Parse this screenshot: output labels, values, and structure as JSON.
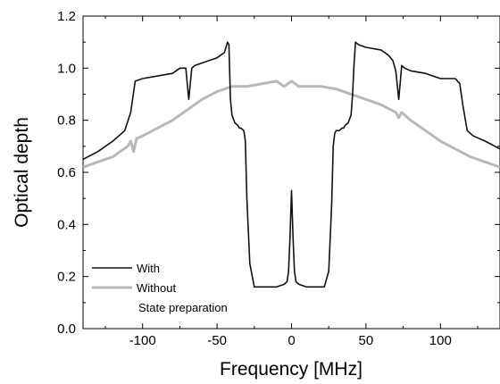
{
  "chart_data": {
    "type": "line",
    "title": "",
    "xlabel": "Frequency [MHz]",
    "ylabel": "Optical depth",
    "xlim": [
      -140,
      140
    ],
    "ylim": [
      0.0,
      1.2
    ],
    "x_ticks": [
      -100,
      -50,
      0,
      50,
      100
    ],
    "x_tick_labels": [
      "-100",
      "-50",
      "0",
      "50",
      "100"
    ],
    "y_ticks": [
      0.0,
      0.2,
      0.4,
      0.6,
      0.8,
      1.0,
      1.2
    ],
    "y_tick_labels": [
      "0.0",
      "0.2",
      "0.4",
      "0.6",
      "0.8",
      "1.0",
      "1.2"
    ],
    "grid": false,
    "legend": {
      "position": "bottom-left",
      "entries": [
        "With",
        "Without"
      ],
      "note": "State preparation"
    },
    "series": [
      {
        "name": "With",
        "color": "#111111",
        "x": [
          -140,
          -130,
          -120,
          -112,
          -108,
          -105,
          -100,
          -90,
          -80,
          -75,
          -71,
          -69,
          -67,
          -65,
          -60,
          -50,
          -45,
          -43,
          -42,
          -41,
          -40,
          -38,
          -36,
          -35,
          -34,
          -32,
          -31,
          -30,
          -28,
          -25,
          -15,
          -10,
          -5,
          -3,
          -2,
          -1,
          0,
          1,
          2,
          3,
          5,
          10,
          15,
          22,
          25,
          27,
          28,
          29,
          30,
          32,
          34,
          35,
          36,
          38,
          40,
          41,
          42,
          43,
          45,
          50,
          60,
          65,
          68,
          70,
          72,
          74,
          76,
          80,
          90,
          100,
          110,
          113,
          115,
          118,
          122,
          130,
          140
        ],
        "y": [
          0.65,
          0.68,
          0.72,
          0.76,
          0.83,
          0.95,
          0.96,
          0.97,
          0.98,
          1.0,
          1.0,
          0.88,
          1.0,
          1.01,
          1.02,
          1.04,
          1.06,
          1.1,
          1.09,
          0.88,
          0.82,
          0.79,
          0.78,
          0.77,
          0.77,
          0.76,
          0.72,
          0.5,
          0.25,
          0.16,
          0.16,
          0.16,
          0.17,
          0.18,
          0.22,
          0.35,
          0.53,
          0.35,
          0.22,
          0.18,
          0.17,
          0.16,
          0.16,
          0.16,
          0.22,
          0.48,
          0.7,
          0.75,
          0.76,
          0.76,
          0.77,
          0.77,
          0.78,
          0.79,
          0.82,
          0.9,
          1.02,
          1.1,
          1.09,
          1.08,
          1.07,
          1.05,
          1.03,
          0.99,
          0.88,
          1.01,
          1.0,
          0.99,
          0.98,
          0.96,
          0.96,
          0.94,
          0.86,
          0.76,
          0.74,
          0.72,
          0.69
        ]
      },
      {
        "name": "Without",
        "color": "#b8b8b8",
        "x": [
          -140,
          -130,
          -120,
          -110,
          -108,
          -106,
          -104,
          -100,
          -90,
          -80,
          -70,
          -60,
          -50,
          -40,
          -30,
          -20,
          -10,
          -5,
          0,
          5,
          10,
          20,
          30,
          40,
          50,
          60,
          70,
          72,
          74,
          80,
          90,
          100,
          110,
          120,
          130,
          140
        ],
        "y": [
          0.62,
          0.64,
          0.66,
          0.7,
          0.72,
          0.68,
          0.73,
          0.74,
          0.77,
          0.8,
          0.84,
          0.88,
          0.91,
          0.93,
          0.93,
          0.94,
          0.95,
          0.93,
          0.95,
          0.93,
          0.93,
          0.93,
          0.92,
          0.9,
          0.88,
          0.86,
          0.83,
          0.81,
          0.83,
          0.8,
          0.76,
          0.72,
          0.69,
          0.66,
          0.64,
          0.62
        ]
      }
    ]
  }
}
